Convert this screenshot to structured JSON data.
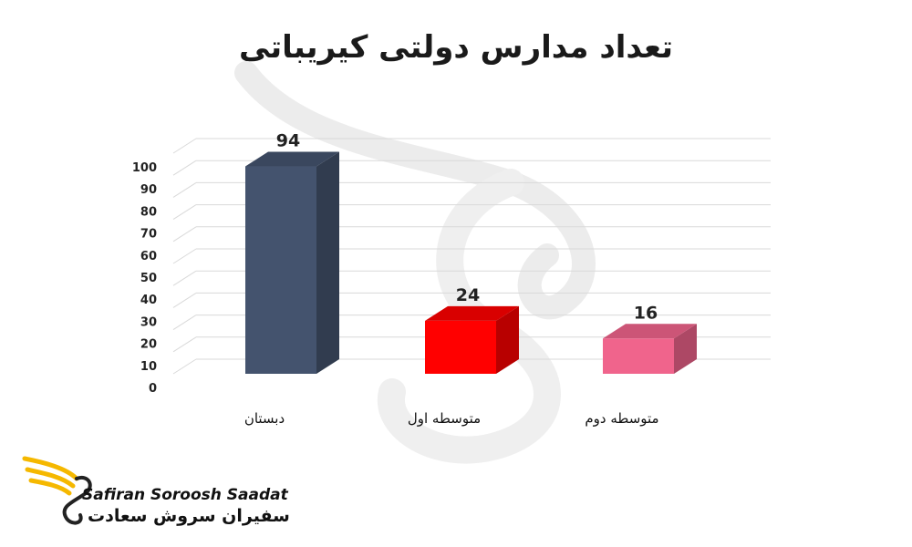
{
  "colors": {
    "bar1": "#44536e",
    "bar2": "#ff0000",
    "bar3": "#f0648c",
    "accent_logo": "#f5b800",
    "watermark": "#e8e8e8"
  },
  "chart_data": {
    "type": "bar",
    "title": "تعداد مدارس دولتی کیریباتی",
    "categories": [
      "دبستان",
      "متوسطه اول",
      "متوسطه دوم"
    ],
    "values": [
      94,
      24,
      16
    ],
    "data_labels": [
      "94",
      "24",
      "16"
    ],
    "ylim": [
      0,
      100
    ],
    "yticks": [
      "0",
      "10",
      "20",
      "30",
      "40",
      "50",
      "60",
      "70",
      "80",
      "90",
      "100"
    ],
    "grid": true,
    "style": "3d-column",
    "xlabel": "",
    "ylabel": ""
  },
  "brand": {
    "name_en": "Safiran Soroosh Saadat",
    "name_fa": "سفیران سروش سعادت",
    "logo_icon": "eagle-icon"
  }
}
